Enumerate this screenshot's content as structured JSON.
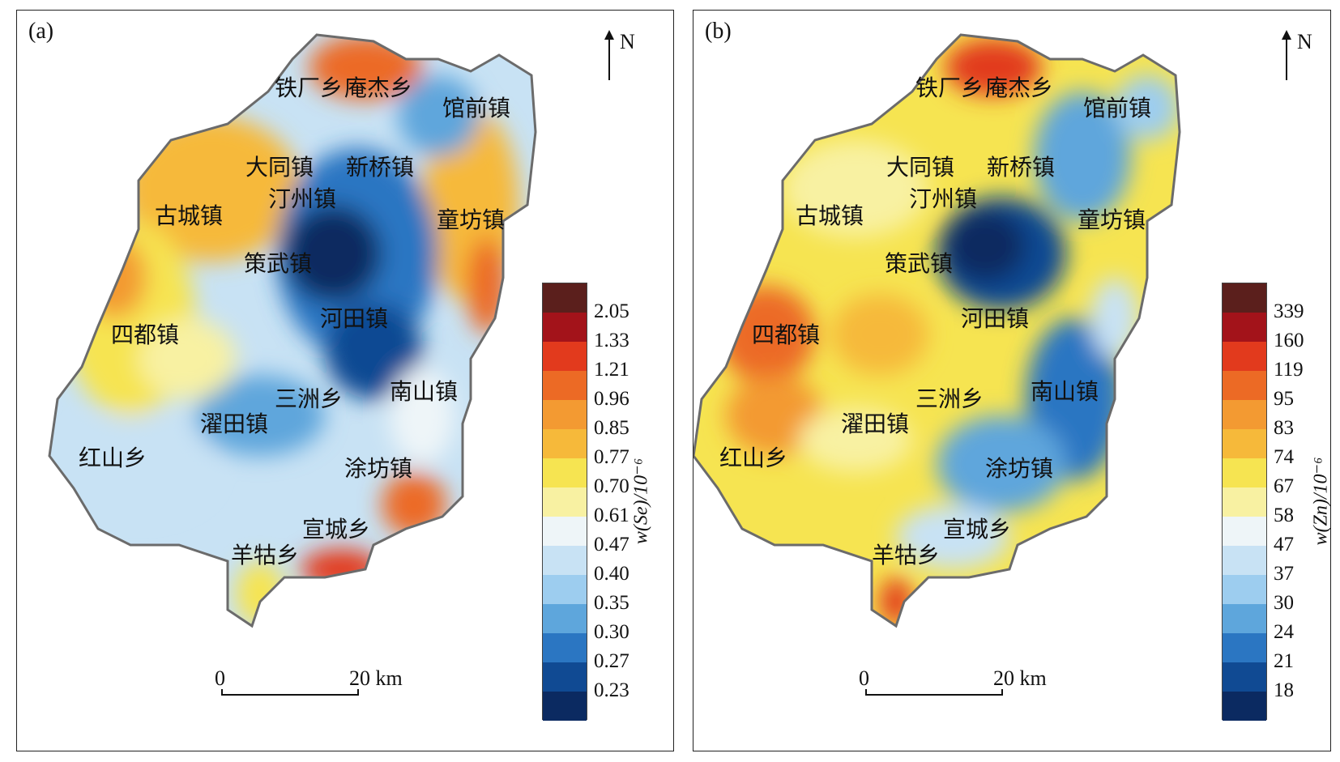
{
  "panels": [
    {
      "label": "(a)",
      "north": "N",
      "places": [
        "铁厂乡",
        "庵杰乡",
        "馆前镇",
        "大同镇",
        "新桥镇",
        "汀州镇",
        "古城镇",
        "童坊镇",
        "策武镇",
        "四都镇",
        "河田镇",
        "三洲乡",
        "南山镇",
        "濯田镇",
        "红山乡",
        "涂坊镇",
        "宣城乡",
        "羊牯乡"
      ],
      "legend_ticks": [
        "2.05",
        "1.33",
        "1.21",
        "0.96",
        "0.85",
        "0.77",
        "0.70",
        "0.61",
        "0.47",
        "0.40",
        "0.35",
        "0.30",
        "0.27",
        "0.23"
      ],
      "legend_unit": "w(Se)/10⁻⁶",
      "scale_start": "0",
      "scale_end": "20 km"
    },
    {
      "label": "(b)",
      "north": "N",
      "places": [
        "铁厂乡",
        "庵杰乡",
        "馆前镇",
        "大同镇",
        "新桥镇",
        "汀州镇",
        "古城镇",
        "童坊镇",
        "策武镇",
        "四都镇",
        "河田镇",
        "三洲乡",
        "南山镇",
        "濯田镇",
        "红山乡",
        "涂坊镇",
        "宣城乡",
        "羊牯乡"
      ],
      "legend_ticks": [
        "339",
        "160",
        "119",
        "95",
        "83",
        "74",
        "67",
        "58",
        "47",
        "37",
        "30",
        "24",
        "21",
        "18"
      ],
      "legend_unit": "w(Zn)/10⁻⁶",
      "scale_start": "0",
      "scale_end": "20 km"
    }
  ],
  "legend_colors": [
    "#5b1f1c",
    "#a3131a",
    "#e23a1d",
    "#ec6a25",
    "#f39a32",
    "#f6b93a",
    "#f6e451",
    "#f8f1a2",
    "#eef5f8",
    "#c8e2f4",
    "#9dcdef",
    "#5ea6dc",
    "#2b76c2",
    "#104a93",
    "#0b2a61"
  ]
}
